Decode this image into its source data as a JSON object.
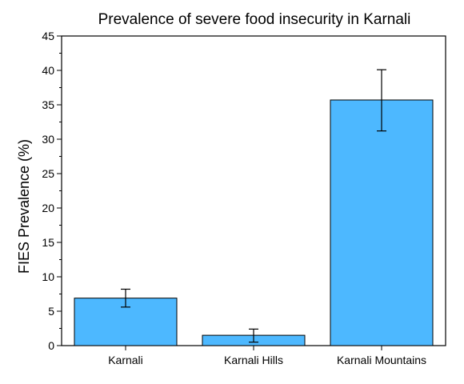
{
  "chart_data": {
    "type": "bar",
    "title": "Prevalence of severe food insecurity in Karnali",
    "xlabel": "",
    "ylabel": "FIES Prevalence (%)",
    "categories": [
      "Karnali",
      "Karnali Hills",
      "Karnali Mountains"
    ],
    "values": [
      6.9,
      1.5,
      35.7
    ],
    "error_low": [
      5.6,
      0.5,
      31.2
    ],
    "error_high": [
      8.2,
      2.4,
      40.1
    ],
    "ylim": [
      0,
      45
    ],
    "yticks": [
      0,
      5,
      10,
      15,
      20,
      25,
      30,
      35,
      40,
      45
    ],
    "grid": false,
    "bar_color": "#4db8ff",
    "bar_edge_color": "#000000"
  }
}
